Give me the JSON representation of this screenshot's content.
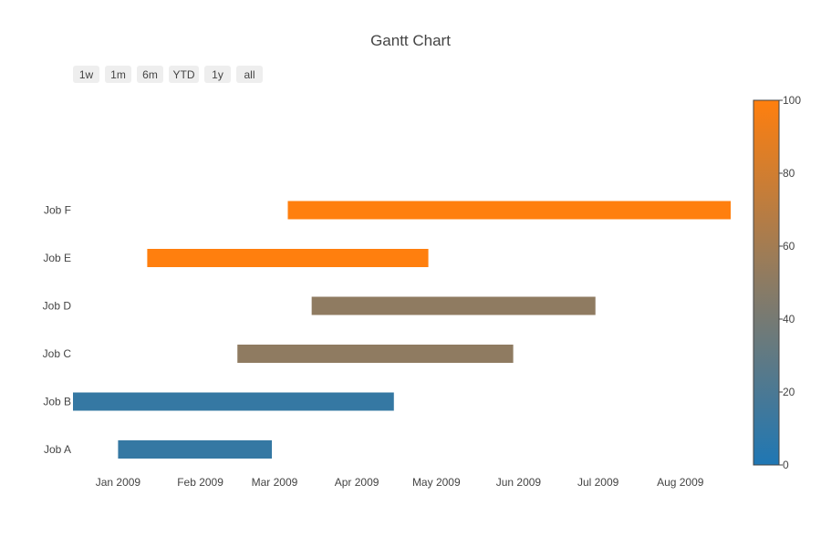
{
  "chart_data": {
    "type": "gantt",
    "title": "Gantt Chart",
    "range_buttons": [
      "1w",
      "1m",
      "6m",
      "YTD",
      "1y",
      "all"
    ],
    "x_ticks": [
      "Jan 2009",
      "Feb 2009",
      "Mar 2009",
      "Apr 2009",
      "May 2009",
      "Jun 2009",
      "Jul 2009",
      "Aug 2009"
    ],
    "x_tick_dates": [
      "2009-01-01",
      "2009-02-01",
      "2009-03-01",
      "2009-04-01",
      "2009-05-01",
      "2009-06-01",
      "2009-07-01",
      "2009-08-01"
    ],
    "xlim": [
      "2008-12-15",
      "2009-08-20"
    ],
    "categories": [
      "Job A",
      "Job B",
      "Job C",
      "Job D",
      "Job E",
      "Job F"
    ],
    "tasks": [
      {
        "name": "Job A",
        "start": "2009-01-01",
        "finish": "2009-02-28",
        "complete": 10
      },
      {
        "name": "Job B",
        "start": "2008-12-15",
        "finish": "2009-04-15",
        "complete": 10
      },
      {
        "name": "Job C",
        "start": "2009-02-15",
        "finish": "2009-05-30",
        "complete": 50
      },
      {
        "name": "Job D",
        "start": "2009-03-15",
        "finish": "2009-06-30",
        "complete": 50
      },
      {
        "name": "Job E",
        "start": "2009-01-12",
        "finish": "2009-04-28",
        "complete": 100
      },
      {
        "name": "Job F",
        "start": "2009-03-06",
        "finish": "2009-08-20",
        "complete": 100
      }
    ],
    "colorbar": {
      "ticks": [
        "0",
        "20",
        "40",
        "60",
        "80",
        "100"
      ],
      "range": [
        0,
        100
      ],
      "color_low": "#1f77b4",
      "color_high": "#ff7f0e"
    },
    "grid": false,
    "legend": "none"
  }
}
